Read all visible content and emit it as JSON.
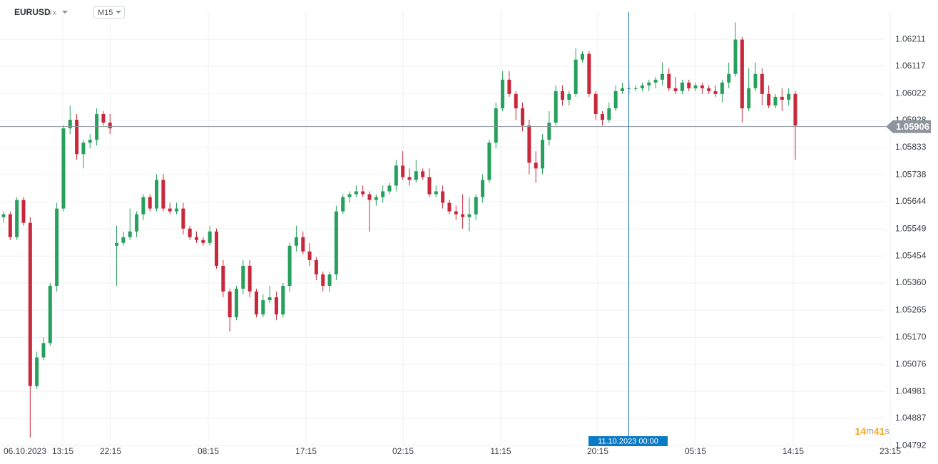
{
  "chart_data": {
    "type": "candlestick",
    "symbol": "EURUSD",
    "market": "FX",
    "timeframe": "M15",
    "x_labels": [
      "06.10.2023",
      "13:15",
      "22:15",
      "08:15",
      "17:15",
      "02:15",
      "11:15",
      "20:15",
      "05:15",
      "14:15",
      "23:15"
    ],
    "crosshair_label": "11.10.2023 00:00",
    "countdown": [
      "14",
      "m",
      "41",
      "s"
    ],
    "last_price": 1.05906,
    "ylim": [
      1.0479,
      1.06306
    ],
    "yticks": [
      1.06211,
      1.06117,
      1.06022,
      1.05928,
      1.05833,
      1.05738,
      1.05644,
      1.05549,
      1.05454,
      {
        "value": 1.0536,
        "label": "1.05360"
      },
      1.05265,
      {
        "value": 1.0517,
        "label": "1.05170"
      },
      1.05076,
      1.04981,
      1.04887,
      1.04792
    ],
    "grid": true,
    "up_color": "#26a05c",
    "down_color": "#c8283c",
    "last_price_color": "#8d949b",
    "open": [
      1.0559,
      1.056,
      1.0552,
      1.0565,
      1.0557,
      1.05,
      1.051,
      1.0515,
      1.0535,
      1.0562,
      1.059,
      1.0593,
      1.0581,
      1.0585,
      1.0586,
      1.0595,
      1.0592,
      1.0549,
      1.055,
      1.0552,
      1.0554,
      1.056,
      1.0566,
      1.0562,
      1.0572,
      1.0562,
      1.0561,
      1.0562,
      1.0555,
      1.0552,
      1.0551,
      1.055,
      1.0554,
      1.0542,
      1.0533,
      1.0524,
      1.0534,
      1.0542,
      1.0533,
      1.0525,
      1.053,
      1.0531,
      1.0525,
      1.0535,
      1.0549,
      1.0552,
      1.0547,
      1.0544,
      1.0539,
      1.0535,
      1.0539,
      1.0561,
      1.0566,
      1.0567,
      1.0568,
      1.0567,
      1.0565,
      1.0566,
      1.0568,
      1.057,
      1.0577,
      1.0573,
      1.0572,
      1.0575,
      1.0573,
      1.0567,
      1.0568,
      1.0564,
      1.0561,
      1.056,
      1.0559,
      1.056,
      1.0566,
      1.0572,
      1.0585,
      1.0597,
      1.0607,
      1.0602,
      1.0597,
      1.0591,
      1.0578,
      1.0576,
      1.0586,
      1.0592,
      1.0603,
      1.06,
      1.0602,
      1.0614,
      1.0616,
      1.0602,
      1.0595,
      1.0593,
      1.0597,
      1.0603,
      1.0604,
      1.0604,
      1.0604,
      1.0605,
      1.0606,
      1.0607,
      1.0609,
      1.0604,
      1.0603,
      1.0606,
      1.0604,
      1.0605,
      1.0604,
      1.0603,
      1.0602,
      1.0606,
      1.0609,
      1.0621,
      1.0597,
      1.0604,
      1.0609,
      1.0602,
      1.0598,
      1.0601,
      1.06,
      1.0602
    ],
    "high": [
      1.0561,
      1.0561,
      1.0566,
      1.0566,
      1.0559,
      1.0512,
      1.0517,
      1.0536,
      1.0564,
      1.0591,
      1.0598,
      1.0595,
      1.0586,
      1.0588,
      1.0597,
      1.0596,
      1.0595,
      1.0556,
      1.0554,
      1.0562,
      1.0561,
      1.0567,
      1.0567,
      1.0574,
      1.0574,
      1.0564,
      1.0564,
      1.0564,
      1.0556,
      1.0554,
      1.0552,
      1.0556,
      1.0555,
      1.0544,
      1.0534,
      1.0535,
      1.0544,
      1.0544,
      1.0534,
      1.0532,
      1.0535,
      1.0533,
      1.0536,
      1.055,
      1.0556,
      1.0554,
      1.055,
      1.0545,
      1.054,
      1.054,
      1.0563,
      1.0567,
      1.0568,
      1.057,
      1.057,
      1.0568,
      1.0567,
      1.057,
      1.0571,
      1.0579,
      1.0582,
      1.0576,
      1.0579,
      1.0576,
      1.0576,
      1.057,
      1.057,
      1.0565,
      1.0563,
      1.0567,
      1.0566,
      1.0567,
      1.0574,
      1.0586,
      1.0599,
      1.061,
      1.061,
      1.0603,
      1.0599,
      1.0593,
      1.0582,
      1.0588,
      1.0596,
      1.0605,
      1.0605,
      1.0603,
      1.0618,
      1.0617,
      1.0617,
      1.0603,
      1.0596,
      1.0599,
      1.0605,
      1.0606,
      1.0606,
      1.0605,
      1.0606,
      1.0607,
      1.0608,
      1.0613,
      1.0611,
      1.0608,
      1.0607,
      1.0607,
      1.0606,
      1.0606,
      1.0605,
      1.0605,
      1.0607,
      1.0613,
      1.0627,
      1.0622,
      1.0611,
      1.0613,
      1.0611,
      1.0605,
      1.0602,
      1.0604,
      1.0604,
      1.0603
    ],
    "low": [
      1.0557,
      1.0551,
      1.0551,
      1.0556,
      1.0482,
      1.0499,
      1.0509,
      1.0514,
      1.0533,
      1.0561,
      1.0588,
      1.0579,
      1.0576,
      1.0583,
      1.0584,
      1.0591,
      1.0588,
      1.0535,
      1.0549,
      1.0551,
      1.0552,
      1.0558,
      1.0561,
      1.0561,
      1.0561,
      1.056,
      1.056,
      1.0553,
      1.0551,
      1.055,
      1.0549,
      1.0549,
      1.0541,
      1.0531,
      1.0519,
      1.0523,
      1.0532,
      1.0531,
      1.0524,
      1.0524,
      1.0529,
      1.0523,
      1.0524,
      1.0533,
      1.0547,
      1.0546,
      1.0542,
      1.0537,
      1.0533,
      1.0533,
      1.0537,
      1.056,
      1.0564,
      1.0566,
      1.0566,
      1.0554,
      1.0563,
      1.0564,
      1.0567,
      1.0568,
      1.0572,
      1.057,
      1.0571,
      1.0572,
      1.0566,
      1.0566,
      1.0562,
      1.056,
      1.0558,
      1.0555,
      1.0554,
      1.0558,
      1.0564,
      1.0571,
      1.0583,
      1.0596,
      1.0601,
      1.0593,
      1.0589,
      1.0574,
      1.0571,
      1.0574,
      1.0584,
      1.0591,
      1.0598,
      1.0598,
      1.0601,
      1.0613,
      1.0601,
      1.0593,
      1.0591,
      1.0592,
      1.0596,
      1.0602,
      1.0602,
      1.0603,
      1.0603,
      1.0603,
      1.0604,
      1.0605,
      1.0603,
      1.0602,
      1.0602,
      1.0603,
      1.0603,
      1.0602,
      1.0602,
      1.0601,
      1.0599,
      1.0604,
      1.0608,
      1.0592,
      1.0596,
      1.0603,
      1.0598,
      1.0597,
      1.0597,
      1.0596,
      1.0598,
      1.0579
    ],
    "close": [
      1.056,
      1.0552,
      1.0565,
      1.0557,
      1.05,
      1.051,
      1.0515,
      1.0535,
      1.0562,
      1.059,
      1.0593,
      1.0581,
      1.0585,
      1.0586,
      1.0595,
      1.0592,
      1.059,
      1.055,
      1.0552,
      1.0554,
      1.056,
      1.0566,
      1.0562,
      1.0572,
      1.0562,
      1.0561,
      1.0562,
      1.0555,
      1.0552,
      1.0551,
      1.055,
      1.0554,
      1.0542,
      1.0533,
      1.0524,
      1.0534,
      1.0542,
      1.0533,
      1.0525,
      1.053,
      1.0531,
      1.0525,
      1.0535,
      1.0549,
      1.0552,
      1.0547,
      1.0544,
      1.0539,
      1.0535,
      1.0539,
      1.0561,
      1.0566,
      1.0567,
      1.0568,
      1.0567,
      1.0565,
      1.0566,
      1.0568,
      1.057,
      1.0577,
      1.0573,
      1.0572,
      1.0575,
      1.0573,
      1.0567,
      1.0568,
      1.0564,
      1.0561,
      1.056,
      1.0559,
      1.056,
      1.0566,
      1.0572,
      1.0585,
      1.0597,
      1.0607,
      1.0602,
      1.0597,
      1.0591,
      1.0578,
      1.0576,
      1.0586,
      1.0592,
      1.0603,
      1.06,
      1.0602,
      1.0614,
      1.0616,
      1.0602,
      1.0595,
      1.0593,
      1.0597,
      1.0603,
      1.0604,
      1.0604,
      1.0604,
      1.0605,
      1.0606,
      1.0607,
      1.0609,
      1.0604,
      1.0603,
      1.0606,
      1.0604,
      1.0605,
      1.0604,
      1.0603,
      1.0602,
      1.0606,
      1.0609,
      1.0621,
      1.0597,
      1.0604,
      1.0609,
      1.0602,
      1.0598,
      1.0601,
      1.06,
      1.0602,
      1.0591
    ]
  }
}
